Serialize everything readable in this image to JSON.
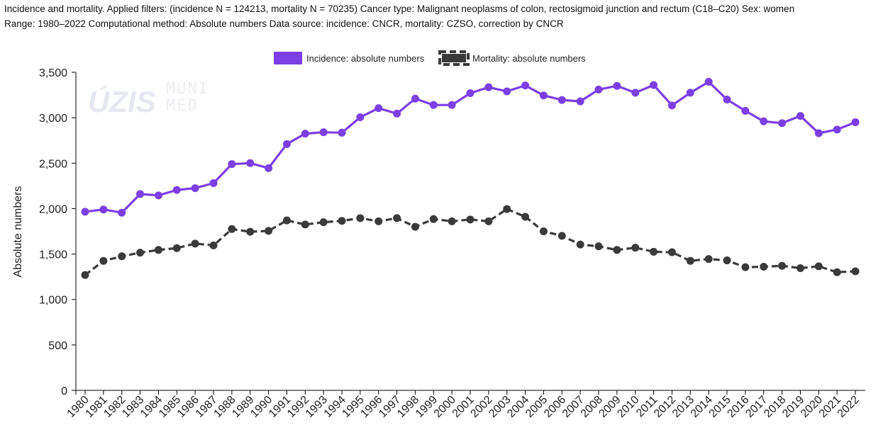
{
  "caption": {
    "line1": "Incidence and mortality. Applied filters: (incidence N = 124213, mortality N = 70235) Cancer type: Malignant neoplasms of colon, rectosigmoid junction and rectum (C18–C20) Sex: women",
    "line2": "Range: 1980–2022 Computational method: Absolute numbers Data source: incidence: CNCR, mortality: CZSO, correction by CNCR"
  },
  "watermark": {
    "logo1": "ÚZIS",
    "logo2_line1": "MUNI",
    "logo2_line2": "MED"
  },
  "colors": {
    "incidence": "#7b3fe4",
    "mortality": "#3a3a3a",
    "axis": "#000000"
  },
  "chart_data": {
    "type": "line",
    "ylabel": "Absolute numbers",
    "xlabel": "",
    "ylim": [
      0,
      3500
    ],
    "y_ticks": [
      0,
      500,
      1000,
      1500,
      2000,
      2500,
      3000,
      3500
    ],
    "y_tick_labels": [
      "0",
      "500",
      "1,000",
      "1,500",
      "2,000",
      "2,500",
      "3,000",
      "3,500"
    ],
    "grid": false,
    "legend_position": "top-center",
    "categories": [
      "1980",
      "1981",
      "1982",
      "1983",
      "1984",
      "1985",
      "1986",
      "1987",
      "1988",
      "1989",
      "1990",
      "1991",
      "1992",
      "1993",
      "1994",
      "1995",
      "1996",
      "1997",
      "1998",
      "1999",
      "2000",
      "2001",
      "2002",
      "2003",
      "2004",
      "2005",
      "2006",
      "2007",
      "2008",
      "2009",
      "2010",
      "2011",
      "2012",
      "2013",
      "2014",
      "2015",
      "2016",
      "2017",
      "2018",
      "2019",
      "2020",
      "2021",
      "2022"
    ],
    "series": [
      {
        "name": "Incidence: absolute numbers",
        "style": "solid",
        "values": [
          1965,
          1990,
          1955,
          2160,
          2145,
          2205,
          2225,
          2280,
          2490,
          2500,
          2445,
          2710,
          2825,
          2840,
          2835,
          3005,
          3105,
          3045,
          3210,
          3140,
          3140,
          3270,
          3335,
          3290,
          3355,
          3245,
          3195,
          3180,
          3310,
          3350,
          3275,
          3360,
          3135,
          3275,
          3395,
          3200,
          3075,
          2960,
          2940,
          3020,
          2830,
          2870,
          2950
        ]
      },
      {
        "name": "Mortality: absolute numbers",
        "style": "dashed",
        "values": [
          1270,
          1425,
          1475,
          1515,
          1545,
          1565,
          1615,
          1595,
          1775,
          1745,
          1755,
          1870,
          1825,
          1850,
          1865,
          1895,
          1860,
          1895,
          1800,
          1885,
          1860,
          1880,
          1860,
          1995,
          1910,
          1750,
          1700,
          1605,
          1585,
          1545,
          1570,
          1525,
          1520,
          1425,
          1445,
          1430,
          1355,
          1360,
          1370,
          1345,
          1365,
          1300,
          1310
        ]
      }
    ]
  }
}
